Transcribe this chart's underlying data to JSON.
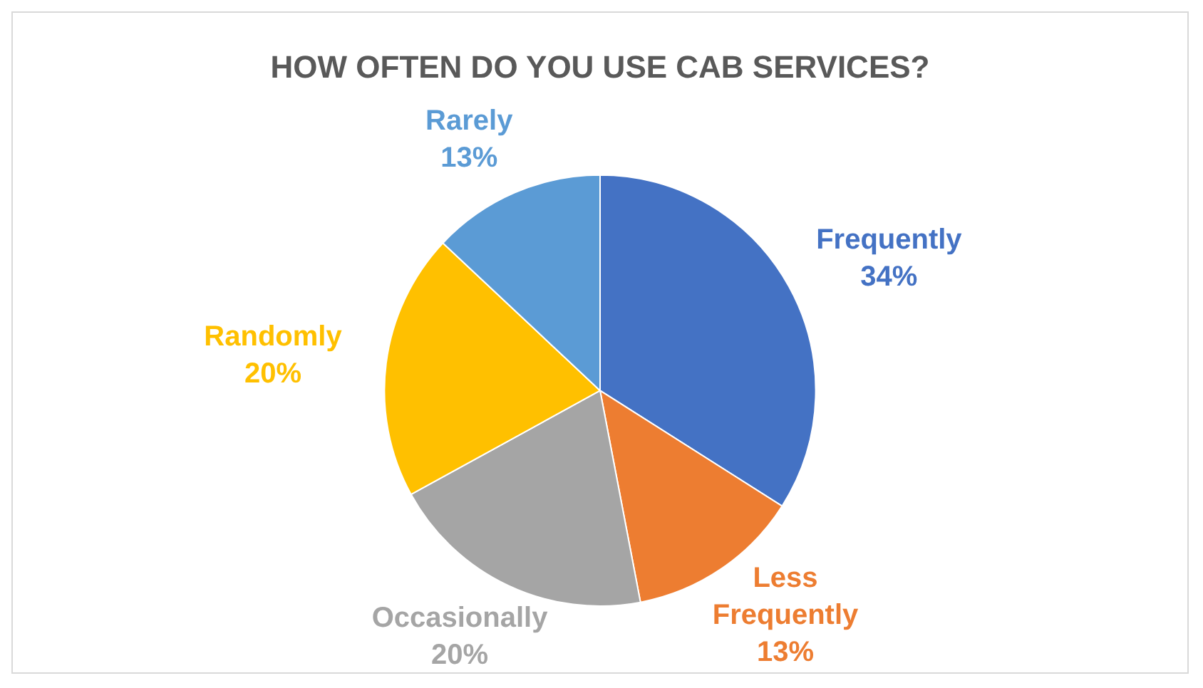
{
  "chart_data": {
    "type": "pie",
    "title": "HOW OFTEN DO YOU USE CAB SERVICES?",
    "categories": [
      "Frequently",
      "Less Frequently",
      "Occasionally",
      "Randomly",
      "Rarely"
    ],
    "values": [
      34,
      13,
      20,
      20,
      13
    ],
    "colors": [
      "#4472c4",
      "#ed7d31",
      "#a5a5a5",
      "#ffc000",
      "#5b9bd5"
    ],
    "value_labels": [
      "34%",
      "13%",
      "20%",
      "20%",
      "13%"
    ],
    "legend": false
  }
}
